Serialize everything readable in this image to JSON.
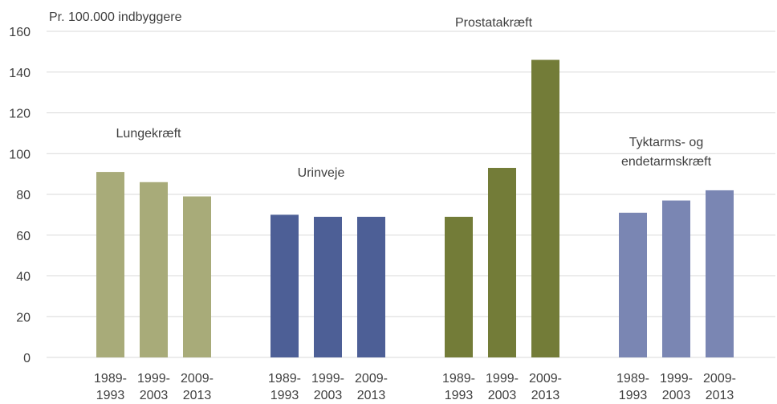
{
  "chart_data": {
    "type": "bar",
    "ylabel": "Pr. 100.000 indbyggere",
    "ylim": [
      0,
      160
    ],
    "yticks": [
      0,
      20,
      40,
      60,
      80,
      100,
      120,
      140,
      160
    ],
    "grid": true,
    "groups": [
      {
        "name": "Lungekræft",
        "name_lines": [
          "Lungekræft"
        ],
        "color": "#a8ab79",
        "categories": [
          [
            "1989-",
            "1993"
          ],
          [
            "1999-",
            "2003"
          ],
          [
            "2009-",
            "2013"
          ]
        ],
        "values": [
          91,
          86,
          79
        ]
      },
      {
        "name": "Urinveje",
        "name_lines": [
          "Urinveje"
        ],
        "color": "#4d5f96",
        "categories": [
          [
            "1989-",
            "1993"
          ],
          [
            "1999-",
            "2003"
          ],
          [
            "2009-",
            "2013"
          ]
        ],
        "values": [
          70,
          69,
          69
        ]
      },
      {
        "name": "Prostatakræft",
        "name_lines": [
          "Prostatakræft"
        ],
        "color": "#737c38",
        "categories": [
          [
            "1989-",
            "1993"
          ],
          [
            "1999-",
            "2003"
          ],
          [
            "2009-",
            "2013"
          ]
        ],
        "values": [
          69,
          93,
          146
        ]
      },
      {
        "name": "Tyktarms- og endetarmskræft",
        "name_lines": [
          "Tyktarms- og",
          "endetarmskræft"
        ],
        "color": "#7a86b3",
        "categories": [
          [
            "1989-",
            "1993"
          ],
          [
            "1999-",
            "2003"
          ],
          [
            "2009-",
            "2013"
          ]
        ],
        "values": [
          71,
          77,
          82
        ]
      }
    ]
  }
}
